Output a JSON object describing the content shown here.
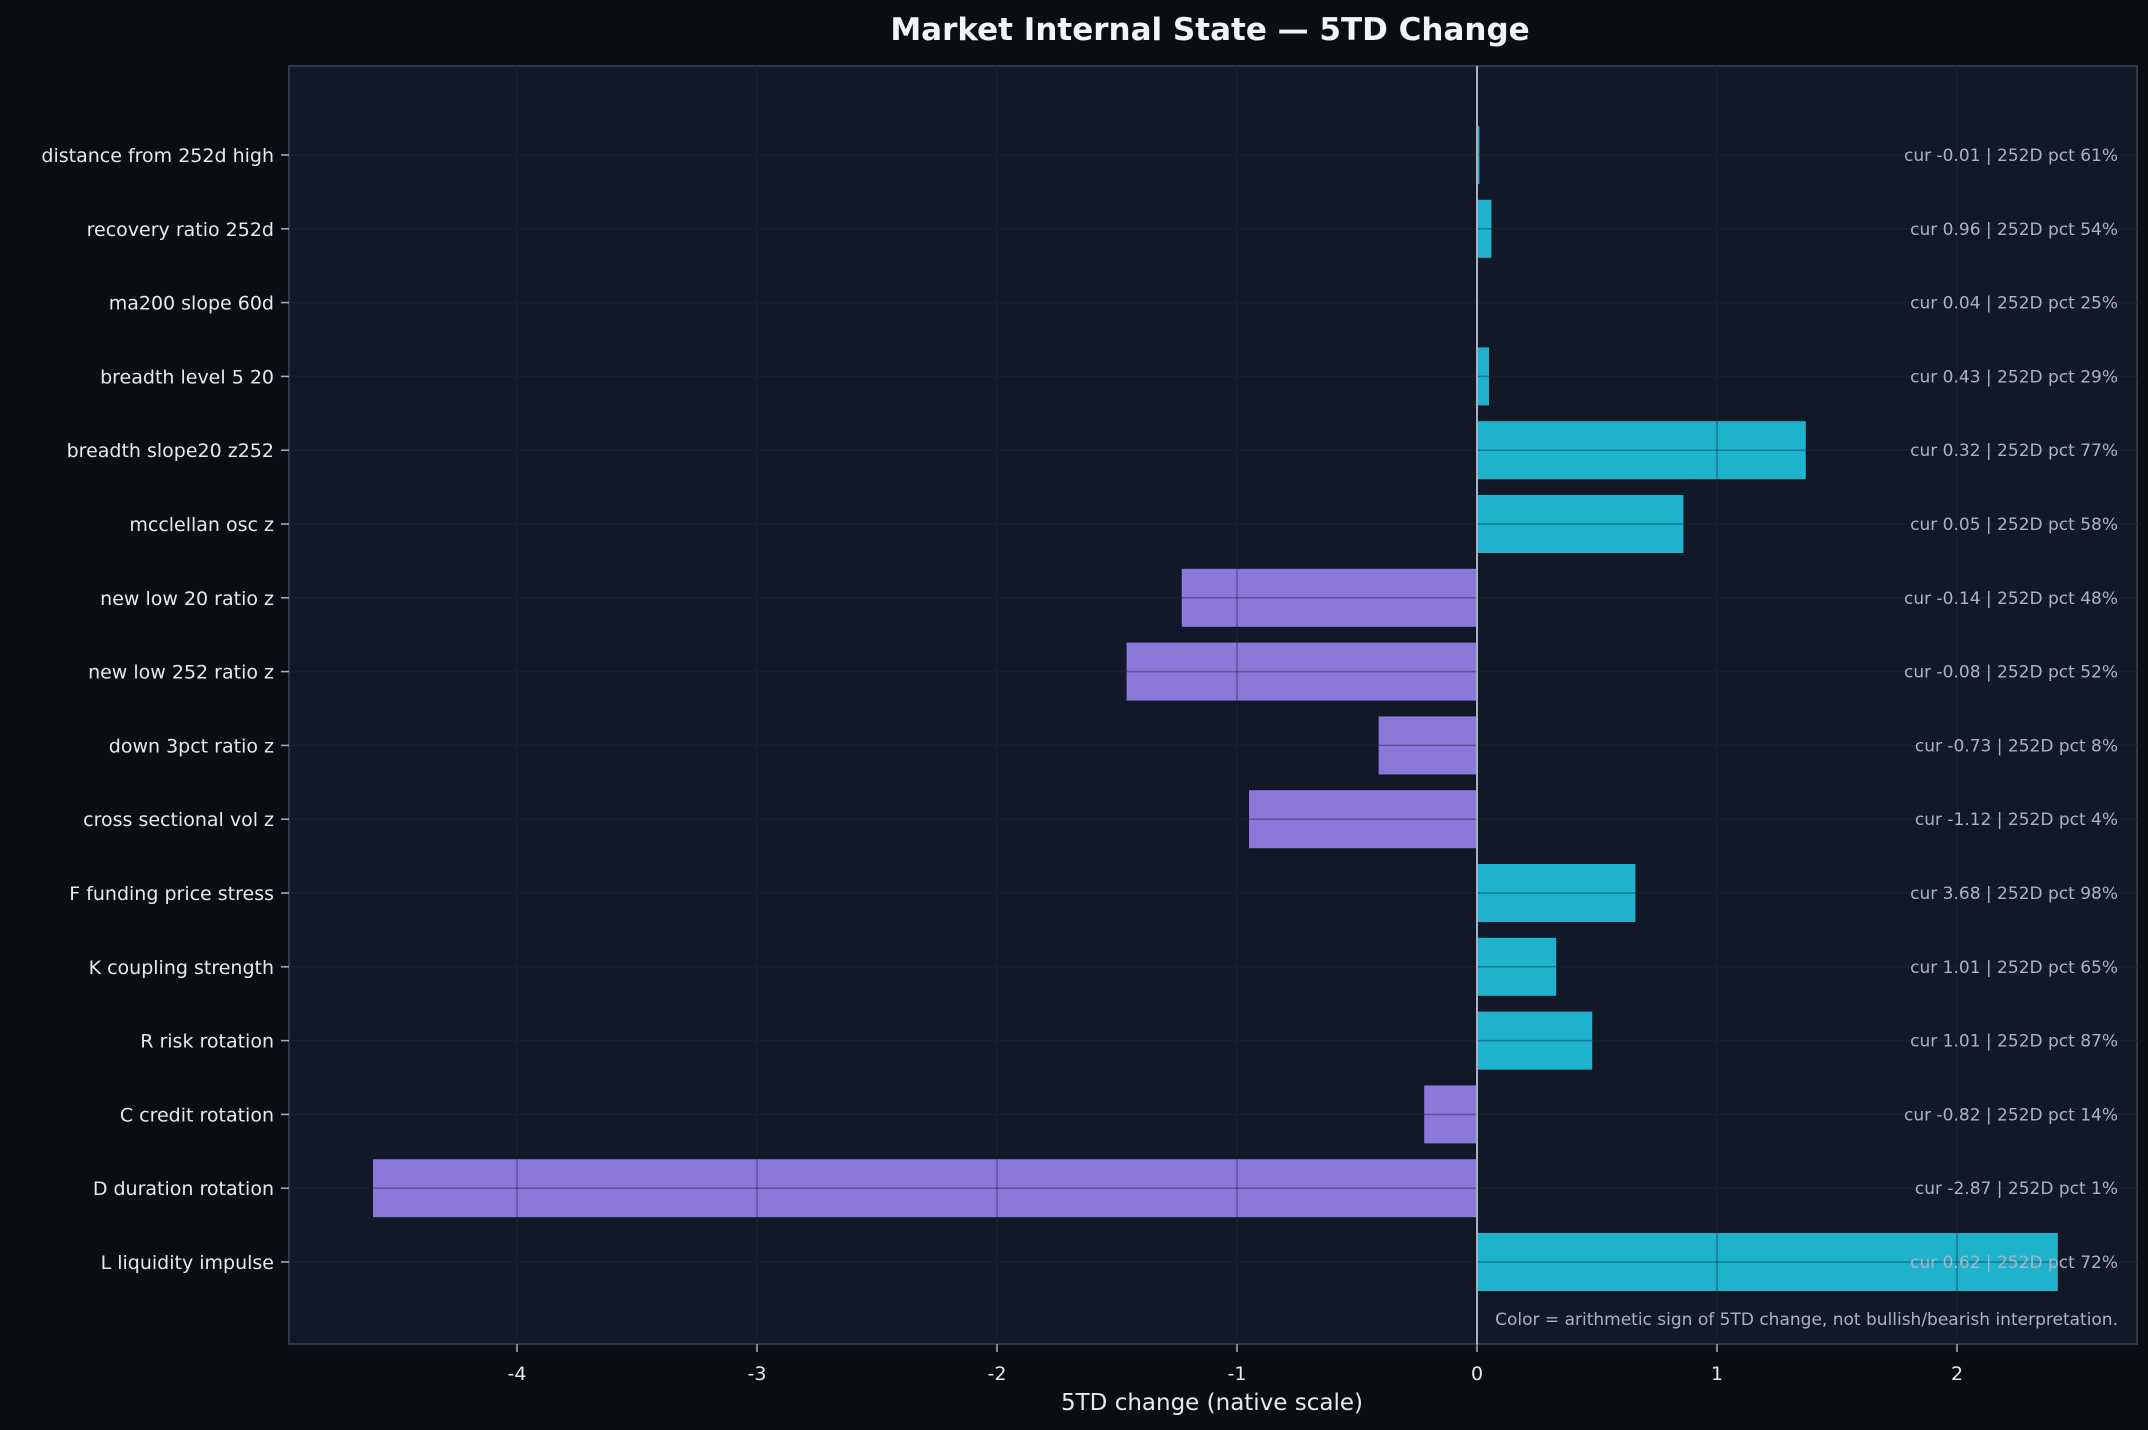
{
  "chart_data": {
    "type": "bar",
    "orientation": "horizontal",
    "title": "Market Internal State — 5TD Change",
    "xlabel": "5TD change (native scale)",
    "ylabel": "",
    "xlim": [
      -4.95,
      2.75
    ],
    "xticks": [
      -4,
      -3,
      -2,
      -1,
      0,
      1,
      2
    ],
    "grid": true,
    "categories": [
      "distance from 252d high",
      "recovery ratio 252d",
      "ma200 slope 60d",
      "breadth level 5 20",
      "breadth slope20 z252",
      "mcclellan osc z",
      "new low 20 ratio z",
      "new low 252 ratio z",
      "down 3pct ratio z",
      "cross sectional vol z",
      "F funding price stress",
      "K coupling strength",
      "R risk rotation",
      "C credit rotation",
      "D duration rotation",
      "L liquidity impulse"
    ],
    "values": [
      0.01,
      0.06,
      0.0,
      0.05,
      1.37,
      0.86,
      -1.23,
      -1.46,
      -0.41,
      -0.95,
      0.66,
      0.33,
      0.48,
      -0.22,
      -4.6,
      2.42
    ],
    "bar_annotations": [
      "cur -0.01 | 252D pct 61%",
      "cur 0.96 | 252D pct 54%",
      "cur 0.04 | 252D pct 25%",
      "cur 0.43 | 252D pct 29%",
      "cur 0.32 | 252D pct 77%",
      "cur 0.05 | 252D pct 58%",
      "cur -0.14 | 252D pct 48%",
      "cur -0.08 | 252D pct 52%",
      "cur -0.73 | 252D pct 8%",
      "cur -1.12 | 252D pct 4%",
      "cur 3.68 | 252D pct 98%",
      "cur 1.01 | 252D pct 65%",
      "cur 1.01 | 252D pct 87%",
      "cur -0.82 | 252D pct 14%",
      "cur -2.87 | 252D pct 1%",
      "cur 0.62 | 252D pct 72%"
    ],
    "footnote": "Color = arithmetic sign of 5TD change, not bullish/bearish interpretation.",
    "colors": {
      "positive": "#1fb2cc",
      "negative": "#8b78d8",
      "background": "#0a0e12",
      "plot_background": "#111929"
    }
  }
}
